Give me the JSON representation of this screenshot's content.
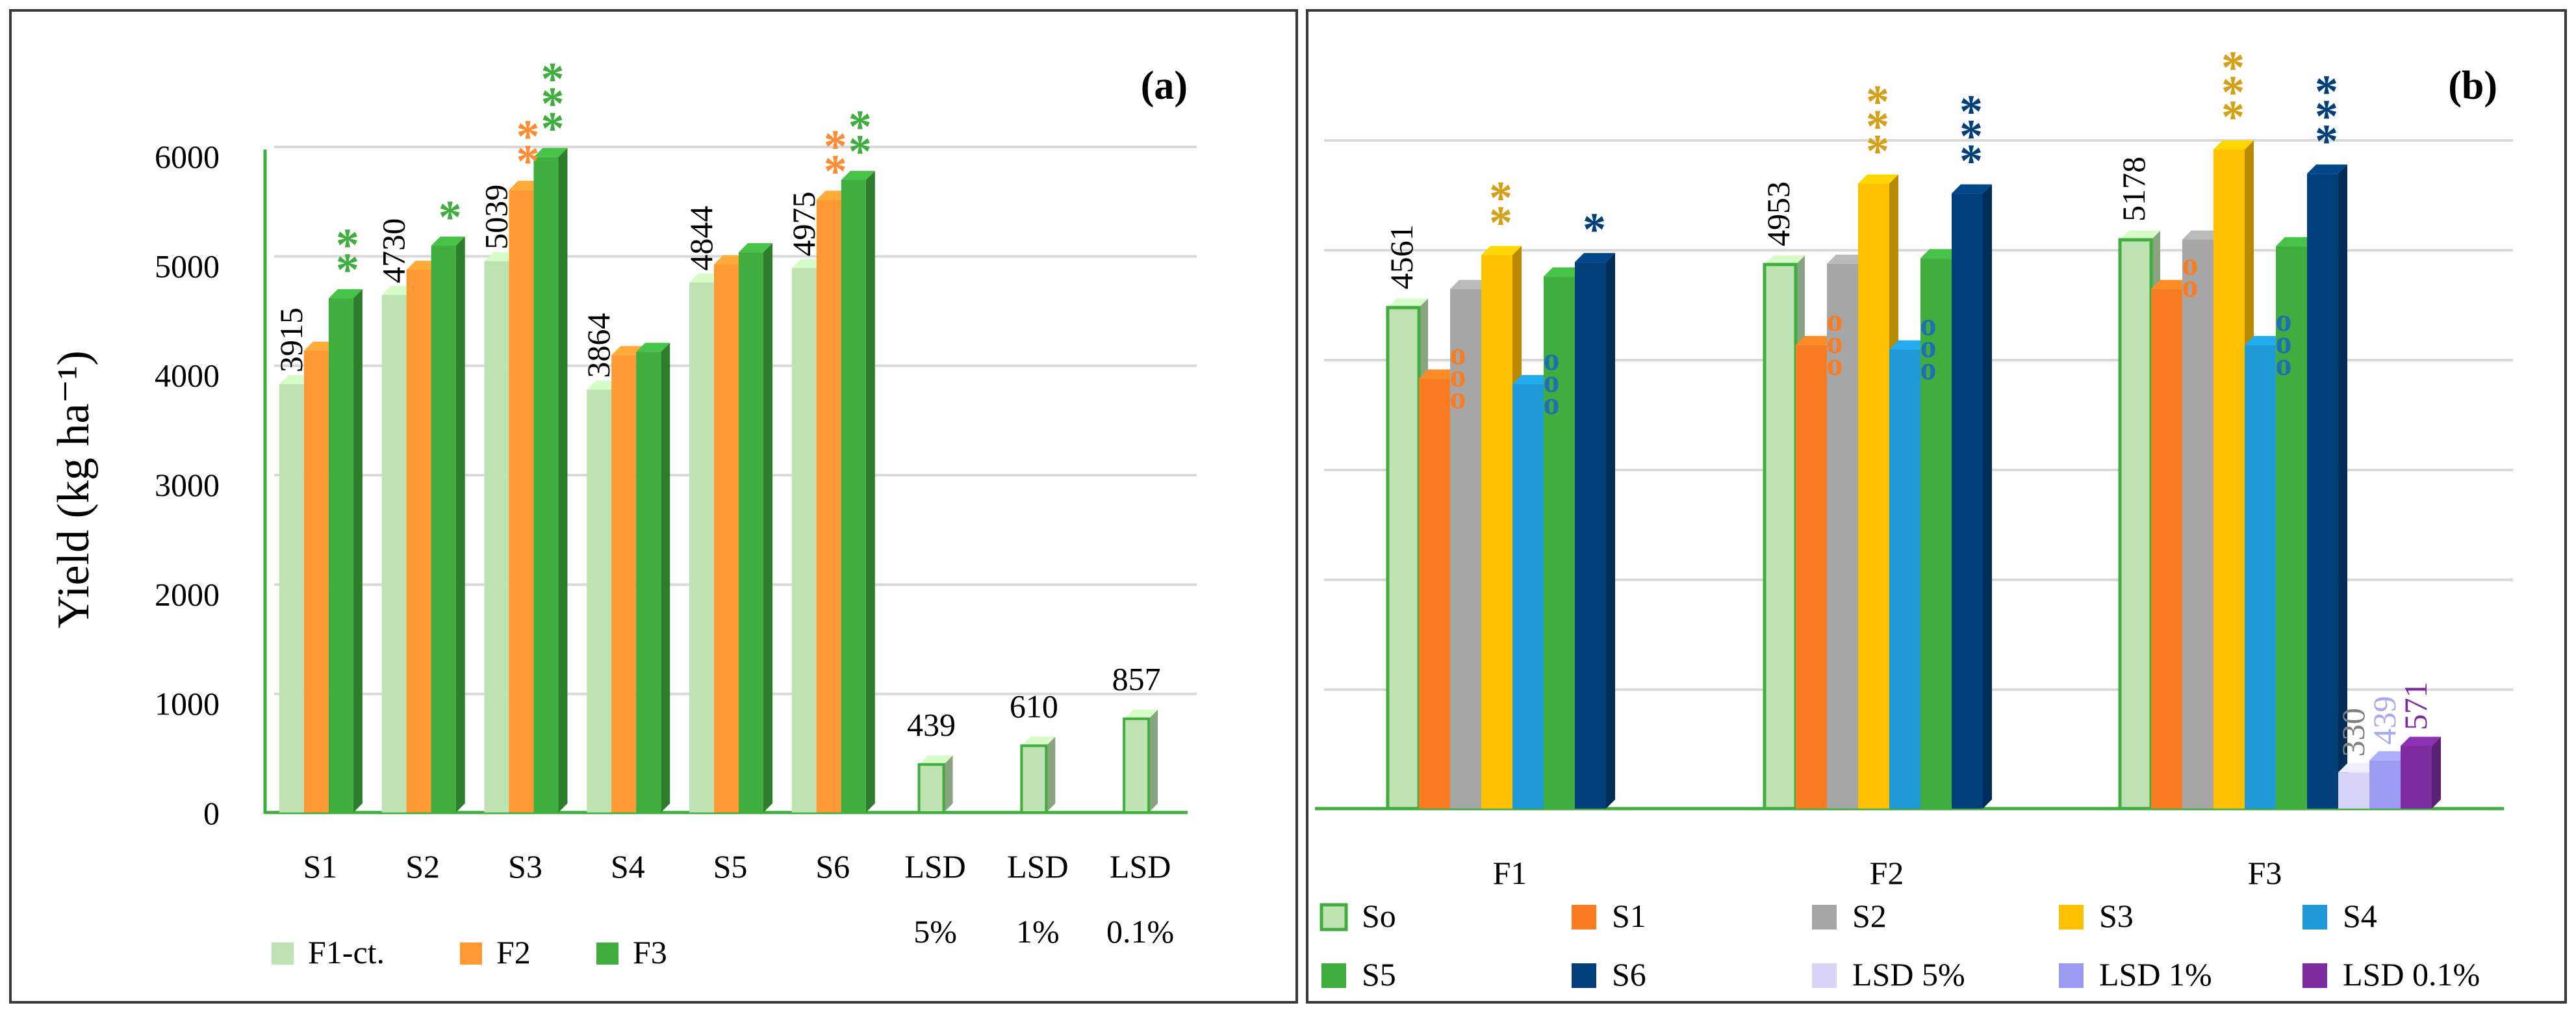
{
  "chart_data": [
    {
      "panel": "(a)",
      "type": "bar",
      "title": "(a)",
      "ylabel": "Yield (kg ha⁻¹)",
      "ylim": [
        0,
        6000
      ],
      "yticks": [
        "0",
        "1000",
        "2000",
        "3000",
        "4000",
        "5000",
        "6000"
      ],
      "categories": [
        "S1",
        "S2",
        "S3",
        "S4",
        "S5",
        "S6",
        "LSD 5%",
        "LSD 1%",
        "LSD 0.1%"
      ],
      "category_labels": [
        [
          "S1"
        ],
        [
          "S2"
        ],
        [
          "S3"
        ],
        [
          "S4"
        ],
        [
          "S5"
        ],
        [
          "S6"
        ],
        [
          "LSD",
          "5%"
        ],
        [
          "LSD",
          "1%"
        ],
        [
          "LSD",
          "0.1%"
        ]
      ],
      "series": [
        {
          "name": "F1-ct.",
          "color": "#bfe2b3",
          "values": [
            3915,
            4730,
            5039,
            3864,
            4844,
            4975,
            439,
            610,
            857
          ]
        },
        {
          "name": "F2",
          "color": "#ff9933",
          "values": [
            4220,
            4960,
            5690,
            4180,
            5010,
            5600,
            null,
            null,
            null
          ]
        },
        {
          "name": "F3",
          "color": "#3fae3f",
          "values": [
            4700,
            5180,
            5990,
            4210,
            5120,
            5780,
            null,
            null,
            null
          ]
        }
      ],
      "data_labels": [
        "3915",
        "4730",
        "5039",
        "3864",
        "4844",
        "4975",
        "439",
        "610",
        "857"
      ],
      "significance": [
        {
          "category": "S1",
          "series": "F3",
          "text": "**",
          "color": "#3fae3f"
        },
        {
          "category": "S2",
          "series": "F3",
          "text": "*",
          "color": "#3fae3f"
        },
        {
          "category": "S3",
          "series": "F2",
          "text": "**",
          "color": "#ff8c33"
        },
        {
          "category": "S3",
          "series": "F3",
          "text": "***",
          "color": "#3fae3f"
        },
        {
          "category": "S6",
          "series": "F2",
          "text": "**",
          "color": "#ff8c33"
        },
        {
          "category": "S6",
          "series": "F3",
          "text": "**",
          "color": "#3fae3f"
        }
      ],
      "legend": [
        "F1-ct.",
        "F2",
        "F3"
      ]
    },
    {
      "panel": "(b)",
      "type": "bar",
      "title": "(b)",
      "ylim": [
        0,
        6000
      ],
      "categories": [
        "F1",
        "F2",
        "F3"
      ],
      "series": [
        {
          "name": "So",
          "color": "#bfe2b3",
          "values": [
            4561,
            4953,
            5178
          ]
        },
        {
          "name": "S1",
          "color": "#f97c22",
          "values": [
            3915,
            4220,
            4730
          ]
        },
        {
          "name": "S2",
          "color": "#a6a6a6",
          "values": [
            4730,
            4960,
            5180
          ]
        },
        {
          "name": "S3",
          "color": "#ffc000",
          "values": [
            5039,
            5690,
            6000
          ]
        },
        {
          "name": "S4",
          "color": "#1f9ad6",
          "values": [
            3864,
            4180,
            4220
          ]
        },
        {
          "name": "S5",
          "color": "#3fae3f",
          "values": [
            4844,
            5010,
            5120
          ]
        },
        {
          "name": "S6",
          "color": "#003f7a",
          "values": [
            4975,
            5600,
            5780
          ]
        },
        {
          "name": "LSD 5%",
          "color": "#d7d4f7",
          "values": [
            null,
            null,
            330
          ]
        },
        {
          "name": "LSD 1%",
          "color": "#9b9bf2",
          "values": [
            null,
            null,
            439
          ]
        },
        {
          "name": "LSD 0.1%",
          "color": "#7d2ca0",
          "values": [
            null,
            null,
            571
          ]
        }
      ],
      "data_labels": [
        "4561",
        "4953",
        "5178"
      ],
      "lsd_labels": [
        {
          "text": "330",
          "color": "#808080"
        },
        {
          "text": "439",
          "color": "#a9a9f2"
        },
        {
          "text": "571",
          "color": "#7d2ca0"
        }
      ],
      "significance": [
        {
          "category": "F1",
          "series": "S1",
          "text": "ooo",
          "color": "#f97c22"
        },
        {
          "category": "F1",
          "series": "S3",
          "text": "**",
          "color": "#d4a017"
        },
        {
          "category": "F1",
          "series": "S4",
          "text": "ooo",
          "color": "#1f6fb5"
        },
        {
          "category": "F1",
          "series": "S6",
          "text": "*",
          "color": "#003f7a"
        },
        {
          "category": "F2",
          "series": "S1",
          "text": "ooo",
          "color": "#f97c22"
        },
        {
          "category": "F2",
          "series": "S3",
          "text": "***",
          "color": "#d4a017"
        },
        {
          "category": "F2",
          "series": "S4",
          "text": "ooo",
          "color": "#1f6fb5"
        },
        {
          "category": "F2",
          "series": "S6",
          "text": "***",
          "color": "#003f7a"
        },
        {
          "category": "F3",
          "series": "S1",
          "text": "oo",
          "color": "#f97c22"
        },
        {
          "category": "F3",
          "series": "S3",
          "text": "***",
          "color": "#d4a017"
        },
        {
          "category": "F3",
          "series": "S4",
          "text": "ooo",
          "color": "#1f6fb5"
        },
        {
          "category": "F3",
          "series": "S6",
          "text": "***",
          "color": "#003f7a"
        }
      ],
      "legend": [
        "So",
        "S1",
        "S2",
        "S3",
        "S4",
        "S5",
        "S6",
        "LSD 5%",
        "LSD 1%",
        "LSD 0.1%"
      ]
    }
  ]
}
